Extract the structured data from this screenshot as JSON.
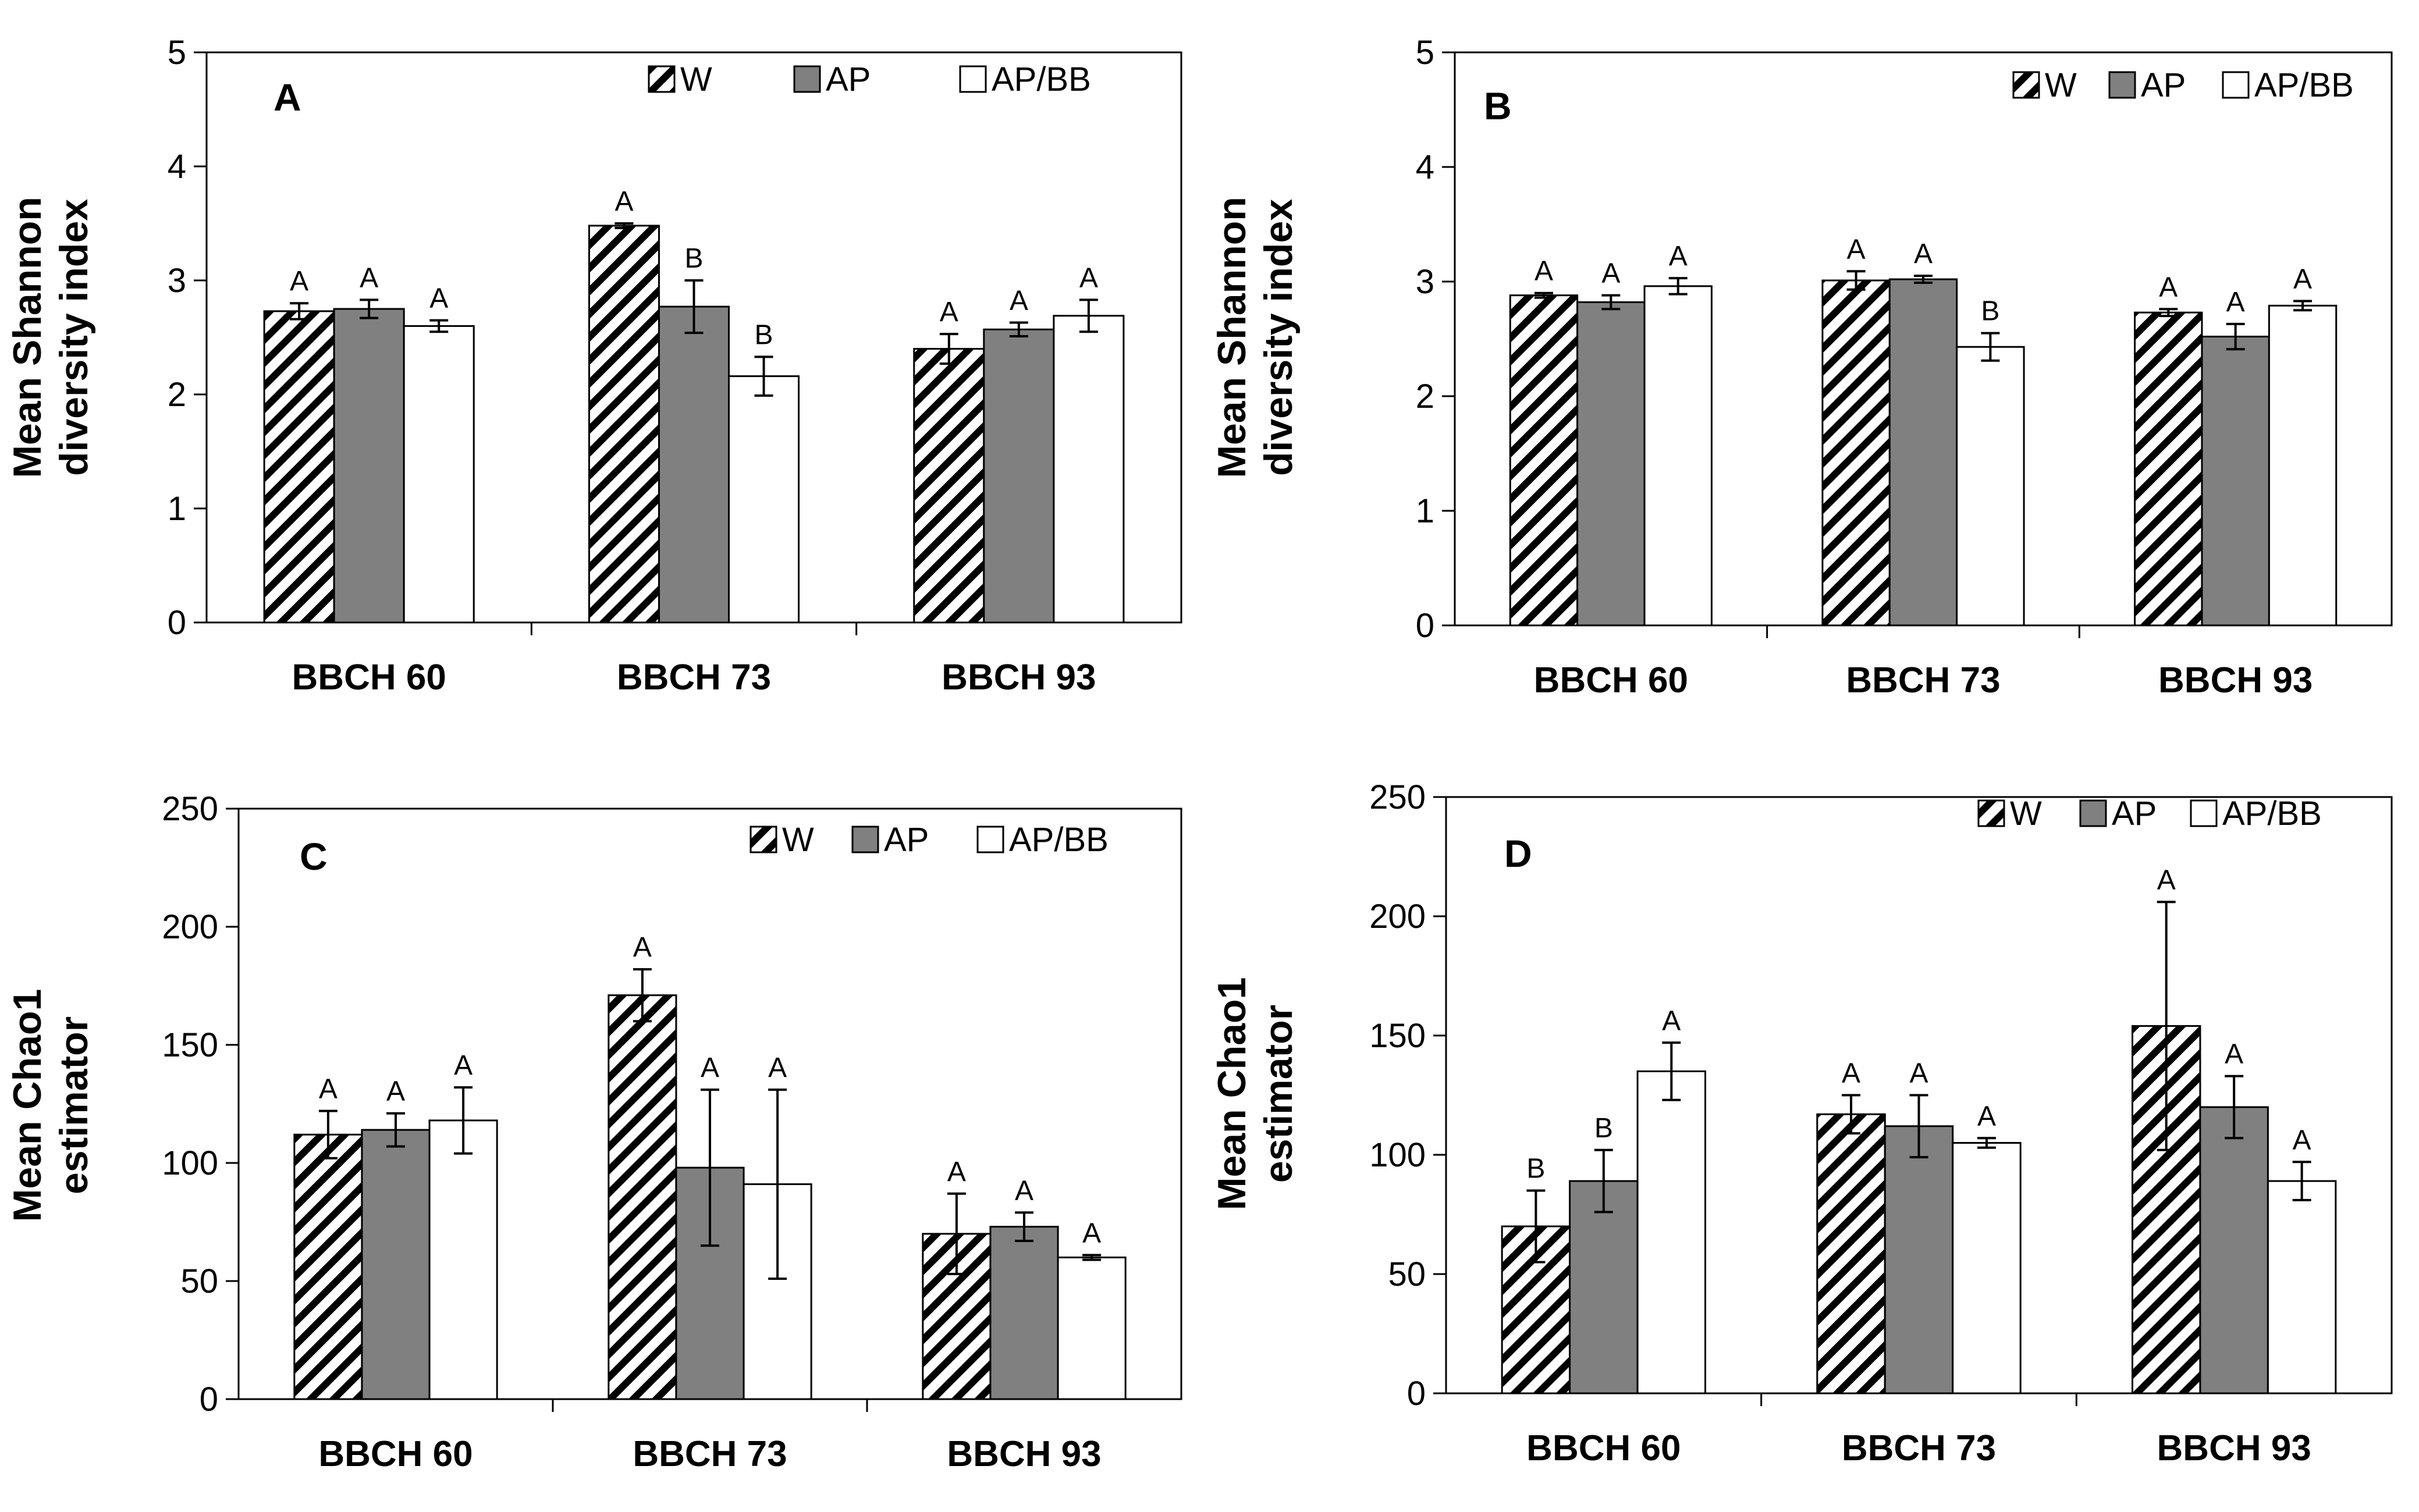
{
  "colors": {
    "w_hatch": "#000000",
    "ap_fill": "#808080",
    "apbb_fill": "#ffffff",
    "axis": "#000000"
  },
  "chart_data": [
    {
      "panel": "A",
      "type": "bar",
      "ylabel": [
        "Mean Shannon",
        "diversity index"
      ],
      "ylim": [
        0,
        5
      ],
      "yticks": [
        0,
        1,
        2,
        3,
        4,
        5
      ],
      "categories": [
        "BBCH 60",
        "BBCH 73",
        "BBCH 93"
      ],
      "legend": [
        "W",
        "AP",
        "AP/BB"
      ],
      "series": [
        {
          "name": "W",
          "values": [
            2.73,
            3.48,
            2.4
          ],
          "errors": [
            0.07,
            0.02,
            0.13
          ],
          "letters": [
            "A",
            "A",
            "A"
          ]
        },
        {
          "name": "AP",
          "values": [
            2.75,
            2.77,
            2.57
          ],
          "errors": [
            0.08,
            0.23,
            0.06
          ],
          "letters": [
            "A",
            "B",
            "A"
          ]
        },
        {
          "name": "AP/BB",
          "values": [
            2.6,
            2.16,
            2.69
          ],
          "errors": [
            0.05,
            0.17,
            0.14
          ],
          "letters": [
            "A",
            "B",
            "A"
          ]
        }
      ]
    },
    {
      "panel": "B",
      "type": "bar",
      "ylabel": [
        "Mean Shannon",
        "diversity index"
      ],
      "ylim": [
        0,
        5
      ],
      "yticks": [
        0,
        1,
        2,
        3,
        4,
        5
      ],
      "categories": [
        "BBCH 60",
        "BBCH 73",
        "BBCH 93"
      ],
      "legend": [
        "W",
        "AP",
        "AP/BB"
      ],
      "series": [
        {
          "name": "W",
          "values": [
            2.88,
            3.01,
            2.73
          ],
          "errors": [
            0.02,
            0.08,
            0.03
          ],
          "letters": [
            "A",
            "A",
            "A"
          ]
        },
        {
          "name": "AP",
          "values": [
            2.82,
            3.02,
            2.52
          ],
          "errors": [
            0.06,
            0.03,
            0.11
          ],
          "letters": [
            "A",
            "A",
            "A"
          ]
        },
        {
          "name": "AP/BB",
          "values": [
            2.96,
            2.43,
            2.79
          ],
          "errors": [
            0.07,
            0.12,
            0.04
          ],
          "letters": [
            "A",
            "B",
            "A"
          ]
        }
      ]
    },
    {
      "panel": "C",
      "type": "bar",
      "ylabel": [
        "Mean Chao1",
        "estimator"
      ],
      "ylim": [
        0,
        250
      ],
      "yticks": [
        0,
        50,
        100,
        150,
        200,
        250
      ],
      "categories": [
        "BBCH 60",
        "BBCH 73",
        "BBCH 93"
      ],
      "legend": [
        "W",
        "AP",
        "AP/BB"
      ],
      "series": [
        {
          "name": "W",
          "values": [
            112,
            171,
            70
          ],
          "errors": [
            10,
            11,
            17
          ],
          "letters": [
            "A",
            "A",
            "A"
          ]
        },
        {
          "name": "AP",
          "values": [
            114,
            98,
            73
          ],
          "errors": [
            7,
            33,
            6
          ],
          "letters": [
            "A",
            "A",
            "A"
          ]
        },
        {
          "name": "AP/BB",
          "values": [
            118,
            91,
            60
          ],
          "errors": [
            14,
            40,
            1
          ],
          "letters": [
            "A",
            "A",
            "A"
          ]
        }
      ]
    },
    {
      "panel": "D",
      "type": "bar",
      "ylabel": [
        "Mean Chao1",
        "estimator"
      ],
      "ylim": [
        0,
        250
      ],
      "yticks": [
        0,
        50,
        100,
        150,
        200,
        250
      ],
      "categories": [
        "BBCH 60",
        "BBCH 73",
        "BBCH 93"
      ],
      "legend": [
        "W",
        "AP",
        "AP/BB"
      ],
      "series": [
        {
          "name": "W",
          "values": [
            70,
            117,
            154
          ],
          "errors": [
            15,
            8,
            52
          ],
          "letters": [
            "B",
            "A",
            "A"
          ]
        },
        {
          "name": "AP",
          "values": [
            89,
            112,
            120
          ],
          "errors": [
            13,
            13,
            13
          ],
          "letters": [
            "B",
            "A",
            "A"
          ]
        },
        {
          "name": "AP/BB",
          "values": [
            135,
            105,
            89
          ],
          "errors": [
            12,
            2,
            8
          ],
          "letters": [
            "A",
            "A",
            "A"
          ]
        }
      ]
    }
  ]
}
